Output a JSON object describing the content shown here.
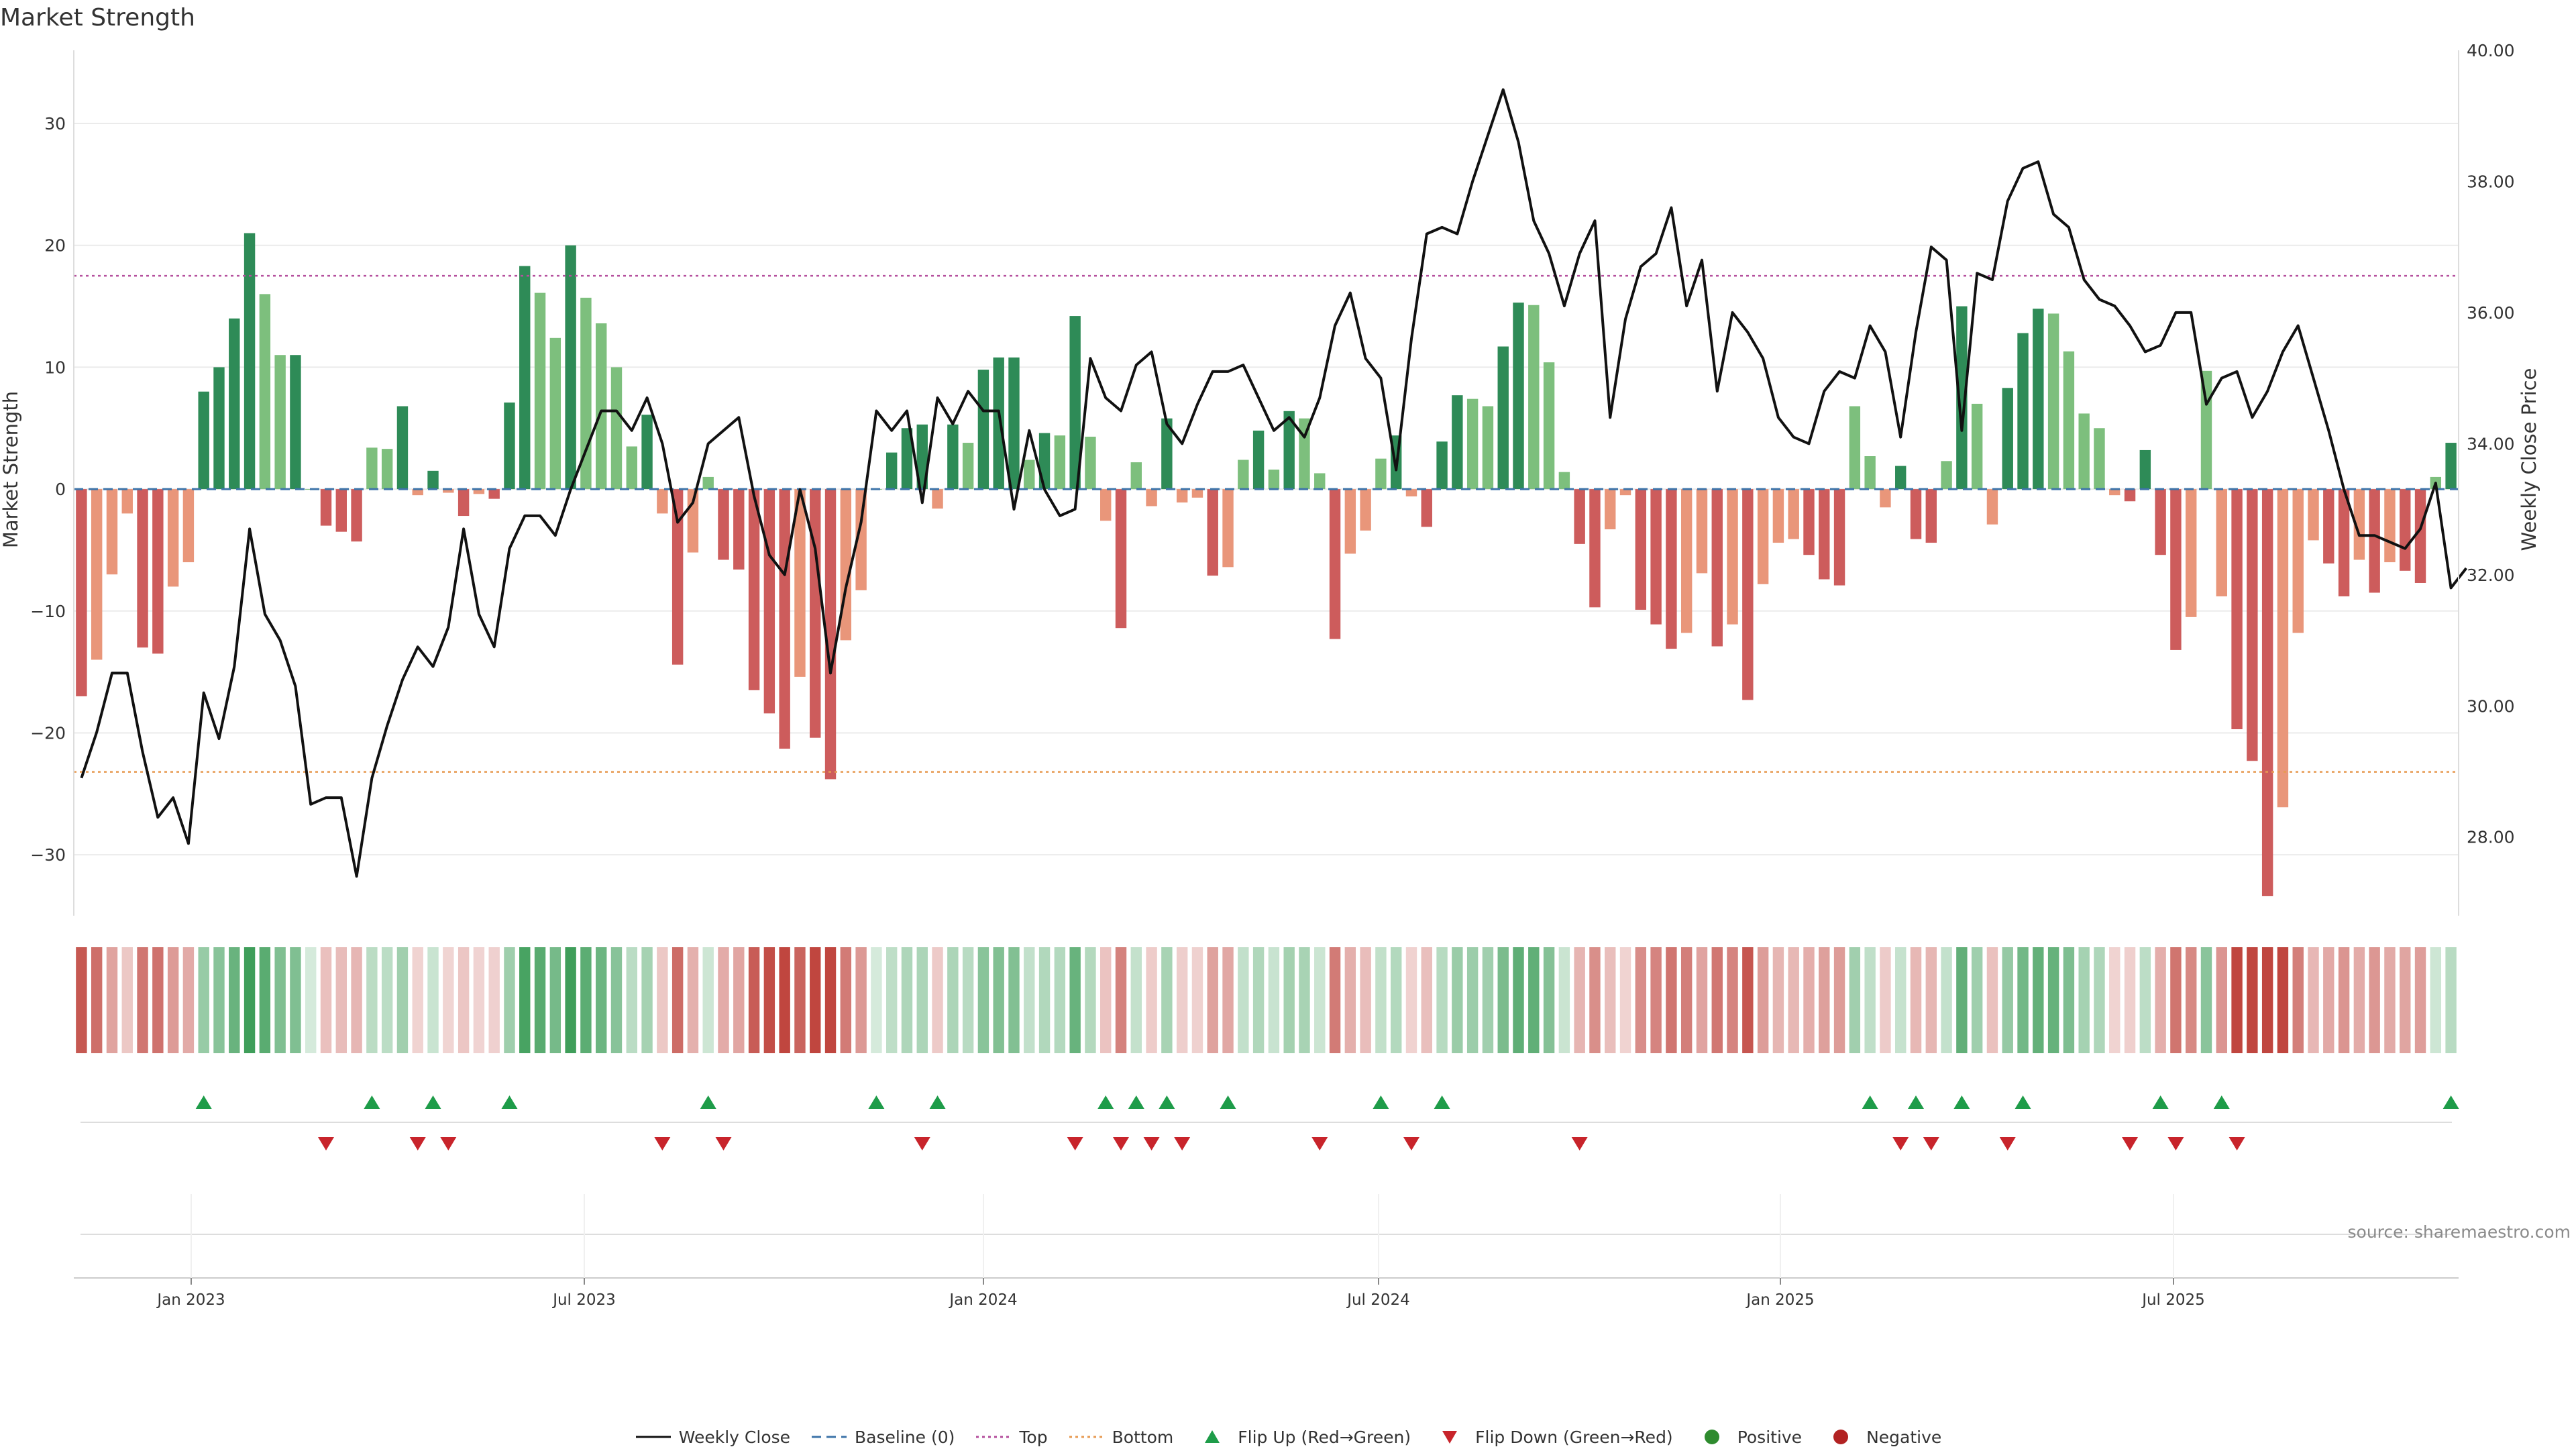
{
  "chart_data": {
    "type": "bar",
    "title": "Market Strength",
    "ylabel": "Market Strength",
    "y2label": "Weekly Close Price",
    "ylim": [
      -35,
      36
    ],
    "y2lim": [
      26.8,
      40.0
    ],
    "yticks": [
      "30",
      "20",
      "10",
      "0",
      "−10",
      "−20",
      "−30"
    ],
    "y2ticks": [
      "40.00",
      "38.00",
      "36.00",
      "34.00",
      "32.00",
      "30.00",
      "28.00"
    ],
    "xticks": [
      "Jan 2023",
      "Jul 2023",
      "Jan 2024",
      "Jul 2024",
      "Jan 2025",
      "Jul 2025"
    ],
    "top_threshold": 17.5,
    "bottom_threshold": -23.2,
    "grid": true,
    "legend_placement": "bottom-center",
    "series": [
      {
        "name": "Market Strength (weekly)",
        "values": [
          -17,
          -14,
          -7,
          -2,
          -13,
          -13.5,
          -8,
          -6,
          8,
          10,
          14,
          21,
          16,
          11,
          11,
          0,
          -3,
          -3.5,
          -4.3,
          3.4,
          3.3,
          6.8,
          -0.5,
          1.5,
          -0.3,
          -2.2,
          -0.4,
          -0.8,
          7.1,
          18.3,
          16.1,
          12.4,
          20,
          15.7,
          13.6,
          10,
          3.5,
          6.1,
          -2,
          -14.4,
          -5.2,
          1,
          -5.8,
          -6.6,
          -16.5,
          -18.4,
          -21.3,
          -15.4,
          -20.4,
          -23.8,
          -12.4,
          -8.3,
          0,
          3,
          5,
          5.3,
          -1.6,
          5.3,
          3.8,
          9.8,
          10.8,
          10.8,
          2.4,
          4.6,
          4.4,
          14.2,
          4.3,
          -2.6,
          -11.4,
          2.2,
          -1.4,
          5.8,
          -1.1,
          -0.7,
          -7.1,
          -6.4,
          2.4,
          4.8,
          1.6,
          6.4,
          5.8,
          1.3,
          -12.3,
          -5.3,
          -3.4,
          2.5,
          4.4,
          -0.6,
          -3.1,
          3.9,
          7.7,
          7.4,
          6.8,
          11.7,
          15.3,
          15.1,
          10.4,
          1.4,
          -4.5,
          -9.7,
          -3.3,
          -0.5,
          -9.9,
          -11.1,
          -13.1,
          -11.8,
          -6.9,
          -12.9,
          -11.1,
          -17.3,
          -7.8,
          -4.4,
          -4.1,
          -5.4,
          -7.4,
          -7.9,
          6.8,
          2.7,
          -1.5,
          1.9,
          -4.1,
          -4.4,
          2.3,
          15,
          7,
          -2.9,
          8.3,
          12.8,
          14.8,
          14.4,
          11.3,
          6.2,
          5,
          -0.5,
          -1,
          3.2,
          -5.4,
          -13.2,
          -10.5,
          9.7,
          -8.8,
          -19.7,
          -22.3,
          -33.4,
          -26.1,
          -11.8,
          -4.2,
          -6.1,
          -8.8,
          -5.8,
          -8.5,
          -6,
          -6.7,
          -7.7,
          1,
          3.8
        ]
      },
      {
        "name": "Weekly Close",
        "values": [
          28.9,
          29.6,
          30.5,
          30.5,
          29.3,
          28.3,
          28.6,
          27.9,
          30.2,
          29.5,
          30.6,
          32.7,
          31.4,
          31.0,
          30.3,
          28.5,
          28.6,
          28.6,
          27.4,
          28.9,
          29.7,
          30.4,
          30.9,
          30.6,
          31.2,
          32.7,
          31.4,
          30.9,
          32.4,
          32.9,
          32.9,
          32.6,
          33.3,
          33.9,
          34.5,
          34.5,
          34.2,
          34.7,
          34.0,
          32.8,
          33.1,
          34.0,
          34.2,
          34.4,
          33.2,
          32.3,
          32.0,
          33.3,
          32.4,
          30.5,
          31.8,
          32.8,
          34.5,
          34.2,
          34.5,
          33.1,
          34.7,
          34.3,
          34.8,
          34.5,
          34.5,
          33.0,
          34.2,
          33.3,
          32.9,
          33.0,
          35.3,
          34.7,
          34.5,
          35.2,
          35.4,
          34.3,
          34.0,
          34.6,
          35.1,
          35.1,
          35.2,
          34.7,
          34.2,
          34.4,
          34.1,
          34.7,
          35.8,
          36.3,
          35.3,
          35.0,
          33.6,
          35.6,
          37.2,
          37.3,
          37.2,
          38.0,
          38.7,
          39.4,
          38.6,
          37.4,
          36.9,
          36.1,
          36.9,
          37.4,
          34.4,
          35.9,
          36.7,
          36.9,
          37.6,
          36.1,
          36.8,
          34.8,
          36.0,
          35.7,
          35.3,
          34.4,
          34.1,
          34.0,
          34.8,
          35.1,
          35.0,
          35.8,
          35.4,
          34.1,
          35.7,
          37.0,
          36.8,
          34.2,
          36.6,
          36.5,
          37.7,
          38.2,
          38.3,
          37.5,
          37.3,
          36.5,
          36.2,
          36.1,
          35.8,
          35.4,
          35.5,
          36.0,
          36.0,
          34.6,
          35.0,
          35.1,
          34.4,
          34.8,
          35.4,
          35.8,
          35.0,
          34.2,
          33.3,
          32.6,
          32.6,
          32.5,
          32.4,
          32.7,
          33.4,
          31.8,
          32.1
        ]
      }
    ],
    "signals": {
      "flip_up_idx": [
        8,
        19,
        23,
        28,
        41,
        52,
        56,
        67,
        69,
        71,
        75,
        85,
        89,
        117,
        120,
        123,
        127,
        136,
        140,
        155
      ],
      "flip_down_idx": [
        16,
        22,
        24,
        38,
        42,
        55,
        65,
        68,
        70,
        72,
        81,
        87,
        98,
        119,
        121,
        126,
        134,
        137,
        141
      ]
    },
    "week_numbers_note": ""
  },
  "page": {
    "title": "Market Strength",
    "source": "source: sharemaestro.com"
  },
  "legend": [
    {
      "key": "weekly-close",
      "label": "Weekly Close",
      "color": "#111111",
      "style": "line"
    },
    {
      "key": "baseline",
      "label": "Baseline (0)",
      "color": "#3d74a9",
      "style": "dash"
    },
    {
      "key": "top",
      "label": "Top",
      "color": "#b5509e",
      "style": "dot"
    },
    {
      "key": "bottom",
      "label": "Bottom",
      "color": "#e79a52",
      "style": "dot"
    },
    {
      "key": "flip-up",
      "label": "Flip Up (Red→Green)",
      "color": "#1e9c49",
      "style": "tri-up"
    },
    {
      "key": "flip-down",
      "label": "Flip Down (Green→Red)",
      "color": "#c8242b",
      "style": "tri-down"
    },
    {
      "key": "positive",
      "label": "Positive",
      "color": "#2e8b2e",
      "style": "circle"
    },
    {
      "key": "negative",
      "label": "Negative",
      "color": "#b22222",
      "style": "circle"
    }
  ],
  "colors": {
    "pos_strong": "#2e8b57",
    "pos_light": "#7dbf7d",
    "neg_strong": "#cd5c5c",
    "neg_light": "#e9967a",
    "grid": "#ebebeb",
    "baseline": "#3d74a9",
    "top": "#b5509e",
    "bottom": "#e79a52",
    "close": "#111111",
    "flip_up": "#1e9c49",
    "flip_down": "#c8242b"
  }
}
